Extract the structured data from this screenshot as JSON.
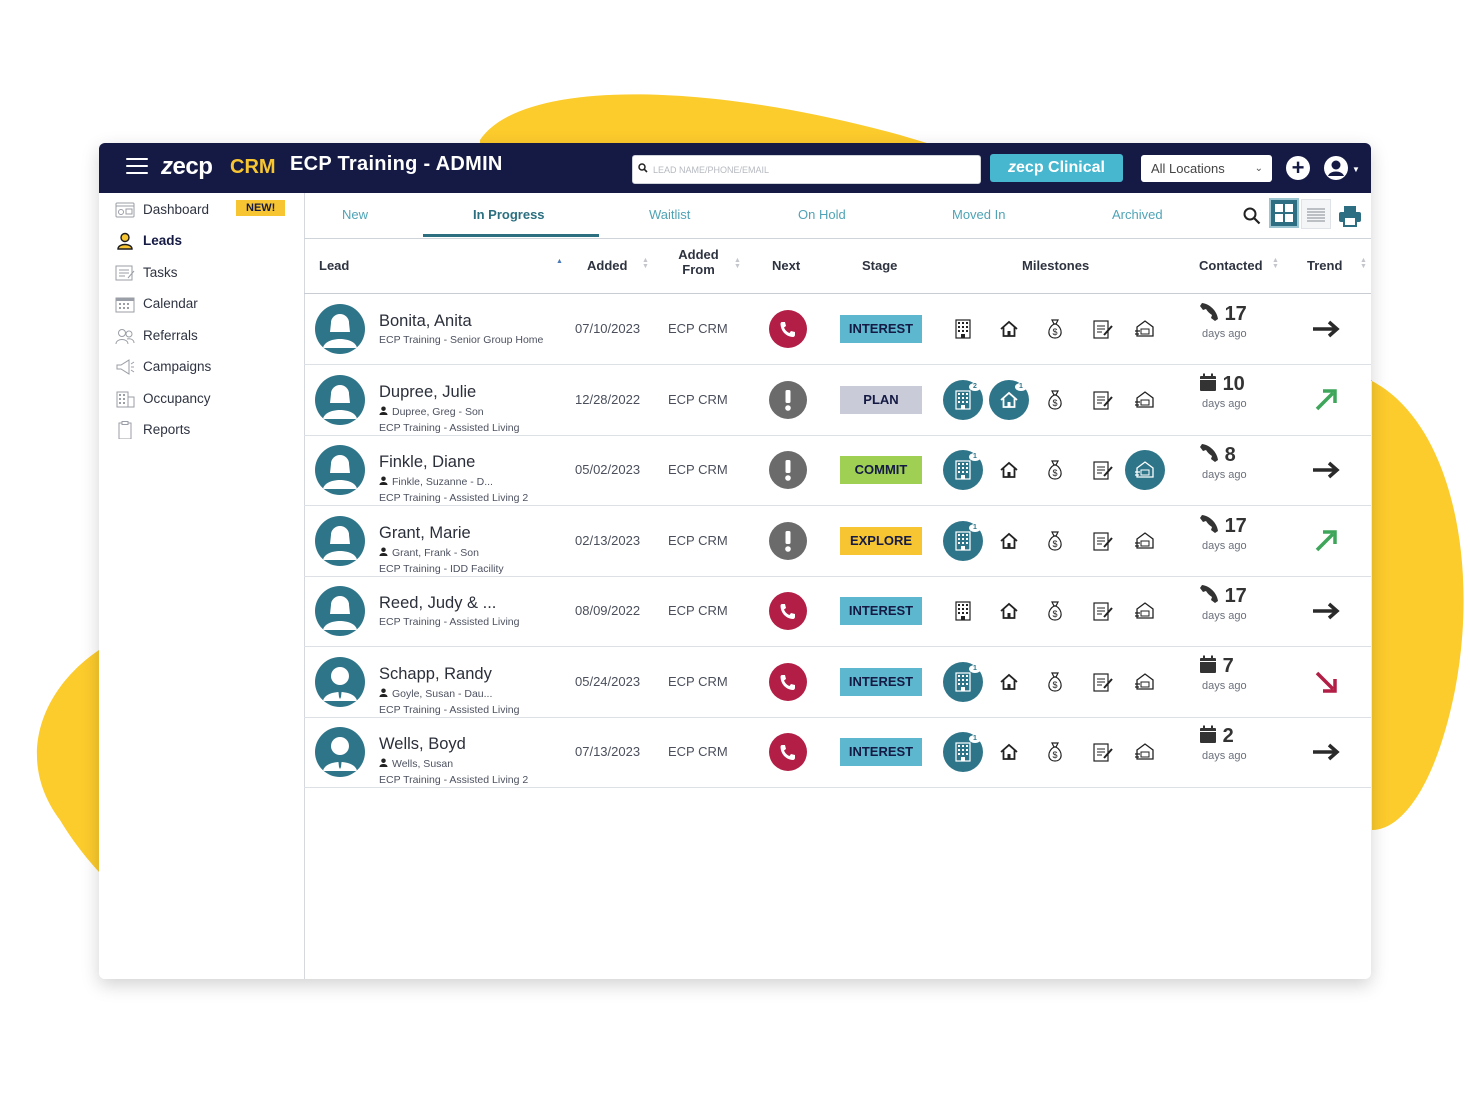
{
  "colors": {
    "navy": "#141a44",
    "brand_yellow": "#f7c531",
    "teal": "#2f7589",
    "clinical": "#47b7cf",
    "red": "#b21e45",
    "green": "#3ea65a",
    "interest": "#5db8cf",
    "plan": "#c9cbd8",
    "commit": "#9fcf53",
    "explore": "#f7c531"
  },
  "topbar": {
    "menu_icon": "hamburger-icon",
    "logo": "ecp",
    "crm": "CRM",
    "title": "ECP Training - ADMIN",
    "search_placeholder": "LEAD NAME/PHONE/EMAIL",
    "clinical_label": "ecp Clinical",
    "location": "All Locations",
    "add_icon": "plus-circle-icon",
    "user_icon": "user-circle-icon"
  },
  "sidebar": {
    "items": [
      {
        "label": "Dashboard",
        "icon": "dashboard-icon",
        "badge": "NEW!"
      },
      {
        "label": "Leads",
        "icon": "person-icon"
      },
      {
        "label": "Tasks",
        "icon": "tasks-icon"
      },
      {
        "label": "Calendar",
        "icon": "calendar-icon"
      },
      {
        "label": "Referrals",
        "icon": "referrals-icon"
      },
      {
        "label": "Campaigns",
        "icon": "megaphone-icon"
      },
      {
        "label": "Occupancy",
        "icon": "building-icon"
      },
      {
        "label": "Reports",
        "icon": "clipboard-icon"
      }
    ]
  },
  "tabs": [
    "New",
    "In Progress",
    "Waitlist",
    "On Hold",
    "Moved In",
    "Archived"
  ],
  "columns": {
    "lead": "Lead",
    "added": "Added",
    "added_from_1": "Added",
    "added_from_2": "From",
    "next": "Next",
    "stage": "Stage",
    "milestones": "Milestones",
    "contacted": "Contacted",
    "trend": "Trend"
  },
  "rows": [
    {
      "name": "Bonita, Anita",
      "contact": "",
      "community": "ECP Training - Senior Group Home",
      "added": "07/10/2023",
      "from": "ECP CRM",
      "next": "call",
      "stage": "INTEREST",
      "milestones": [
        0,
        0,
        0,
        0,
        0
      ],
      "badges": [
        "",
        "",
        "",
        "",
        ""
      ],
      "contact_type": "phone",
      "days": "17",
      "ago": "days ago",
      "trend": "flat",
      "gender": "f"
    },
    {
      "name": "Dupree, Julie",
      "contact": "Dupree, Greg - Son",
      "community": "ECP Training - Assisted Living",
      "added": "12/28/2022",
      "from": "ECP CRM",
      "next": "alert",
      "stage": "PLAN",
      "milestones": [
        1,
        1,
        0,
        0,
        0
      ],
      "badges": [
        "2",
        "1",
        "",
        "",
        ""
      ],
      "contact_type": "calendar",
      "days": "10",
      "ago": "days ago",
      "trend": "up",
      "gender": "f"
    },
    {
      "name": "Finkle, Diane",
      "contact": "Finkle, Suzanne - D...",
      "community": "ECP Training - Assisted Living 2",
      "added": "05/02/2023",
      "from": "ECP CRM",
      "next": "alert",
      "stage": "COMMIT",
      "milestones": [
        1,
        0,
        0,
        0,
        1
      ],
      "badges": [
        "1",
        "",
        "",
        "",
        ""
      ],
      "contact_type": "phone",
      "days": "8",
      "ago": "days ago",
      "trend": "flat",
      "gender": "f"
    },
    {
      "name": "Grant, Marie",
      "contact": "Grant, Frank - Son",
      "community": "ECP Training - IDD Facility",
      "added": "02/13/2023",
      "from": "ECP CRM",
      "next": "alert",
      "stage": "EXPLORE",
      "milestones": [
        1,
        0,
        0,
        0,
        0
      ],
      "badges": [
        "1",
        "",
        "",
        "",
        ""
      ],
      "contact_type": "phone",
      "days": "17",
      "ago": "days ago",
      "trend": "up",
      "gender": "f"
    },
    {
      "name": "Reed, Judy & ...",
      "contact": "",
      "community": "ECP Training - Assisted Living",
      "added": "08/09/2022",
      "from": "ECP CRM",
      "next": "call",
      "stage": "INTEREST",
      "milestones": [
        0,
        0,
        0,
        0,
        0
      ],
      "badges": [
        "",
        "",
        "",
        "",
        ""
      ],
      "contact_type": "phone",
      "days": "17",
      "ago": "days ago",
      "trend": "flat",
      "gender": "f"
    },
    {
      "name": "Schapp, Randy",
      "contact": "Goyle, Susan - Dau...",
      "community": "ECP Training - Assisted Living",
      "added": "05/24/2023",
      "from": "ECP CRM",
      "next": "call",
      "stage": "INTEREST",
      "milestones": [
        1,
        0,
        0,
        0,
        0
      ],
      "badges": [
        "1",
        "",
        "",
        "",
        ""
      ],
      "contact_type": "calendar",
      "days": "7",
      "ago": "days ago",
      "trend": "down",
      "gender": "m"
    },
    {
      "name": "Wells, Boyd",
      "contact": "Wells, Susan",
      "community": "ECP Training - Assisted Living 2",
      "added": "07/13/2023",
      "from": "ECP CRM",
      "next": "call",
      "stage": "INTEREST",
      "milestones": [
        1,
        0,
        0,
        0,
        0
      ],
      "badges": [
        "1",
        "",
        "",
        "",
        ""
      ],
      "contact_type": "calendar",
      "days": "2",
      "ago": "days ago",
      "trend": "flat",
      "gender": "m"
    }
  ]
}
